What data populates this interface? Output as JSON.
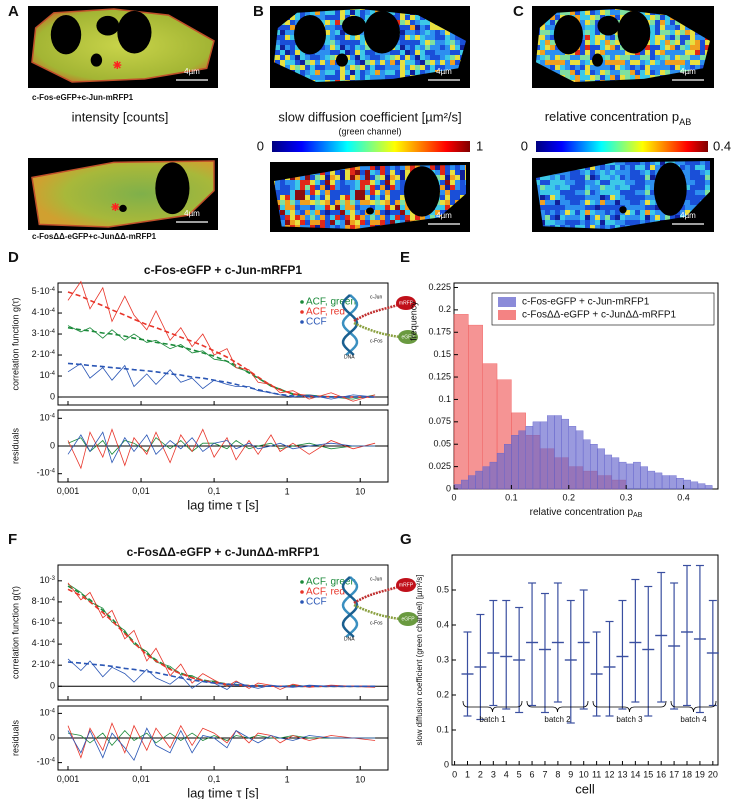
{
  "panels": {
    "labels": [
      "A",
      "B",
      "C",
      "D",
      "E",
      "F",
      "G"
    ],
    "A": {
      "caption_top": "c-Fos-eGFP+c-Jun-mRFP1",
      "caption_bottom": "c-FosΔΔ-eGFP+c-JunΔΔ-mRFP1",
      "title": "intensity [counts]"
    },
    "B": {
      "title": "slow diffusion coefficient [µm²/s]",
      "subtitle": "(green channel)",
      "colorbar": [
        0,
        1
      ]
    },
    "C": {
      "title": "relative concentration p",
      "title_sub": "AB",
      "colorbar": [
        0,
        0.4
      ]
    },
    "scale_bar": "4µm"
  },
  "chart_data": [
    {
      "type": "correlation",
      "title": "c-Fos-eGFP + c-Jun-mRFP1",
      "ylabel": "correlation function g(τ)",
      "residual_label": "residuals",
      "xlabel": "lag time τ [s]",
      "xscale": "log",
      "x": [
        0.001,
        0.0015,
        0.002,
        0.003,
        0.004,
        0.006,
        0.008,
        0.012,
        0.016,
        0.025,
        0.035,
        0.05,
        0.07,
        0.1,
        0.15,
        0.2,
        0.3,
        0.4,
        0.6,
        0.8,
        1.2,
        2,
        4,
        8,
        16
      ],
      "xlim": [
        0.00073,
        24
      ],
      "xticks": [
        {
          "value": 0.001,
          "label": "0,001"
        },
        {
          "value": 0.01,
          "label": "0,01"
        },
        {
          "value": 0.1,
          "label": "0,1"
        },
        1,
        10
      ],
      "ylim": [
        -3.8e-05,
        0.000543
      ],
      "yticks": [
        0,
        {
          "value": 0.0001,
          "label": "10",
          "exp": "-4"
        },
        {
          "value": 0.0002,
          "label": "2·10",
          "exp": "-4"
        },
        {
          "value": 0.0003,
          "label": "3·10",
          "exp": "-4"
        },
        {
          "value": 0.0004,
          "label": "4·10",
          "exp": "-4"
        },
        {
          "value": 0.0005,
          "label": "5·10",
          "exp": "-4"
        }
      ],
      "residual_ylim": [
        -0.00013,
        0.00013
      ],
      "residual_yticks": [
        {
          "value": -0.0001,
          "label": "-10",
          "exp": "-4"
        },
        0,
        {
          "value": 0.0001,
          "label": "10",
          "exp": "-4"
        }
      ],
      "series": [
        {
          "name": "ACF, green",
          "color": "#1b8a3a",
          "values": [
            0.00034,
            0.00031,
            0.00033,
            0.00028,
            0.00032,
            0.00027,
            0.0003,
            0.00026,
            0.00027,
            0.00023,
            0.00025,
            0.00021,
            0.00022,
            0.00018,
            0.00017,
            0.00014,
            0.00012,
            9e-05,
            5e-05,
            4e-05,
            1e-05,
            1e-05,
            0,
            -1e-05,
            1e-05
          ],
          "fit": [
            0.00033,
            0.00032,
            0.000315,
            0.000305,
            0.0003,
            0.00029,
            0.00028,
            0.00027,
            0.00026,
            0.00025,
            0.00024,
            0.000225,
            0.00021,
            0.000195,
            0.00017,
            0.00015,
            0.000115,
            9e-05,
            5.5e-05,
            3.5e-05,
            1.5e-05,
            5e-06,
            1e-06,
            0,
            0
          ],
          "residuals": [
            1e-05,
            3e-05,
            -2e-05,
            2e-05,
            -3e-05,
            2e-05,
            1e-05,
            -2e-05,
            3e-05,
            -1e-05,
            2e-05,
            -2e-05,
            1e-05,
            1e-05,
            -1e-05,
            2e-05,
            -1e-05,
            0,
            1e-05,
            -1e-05,
            0,
            1e-05,
            -1e-05,
            0,
            0
          ]
        },
        {
          "name": "ACF, red",
          "color": "#e8352a",
          "values": [
            0.00046,
            0.00055,
            0.00042,
            0.00052,
            0.00036,
            0.00048,
            0.00039,
            0.00032,
            0.00041,
            0.00027,
            0.00033,
            0.00024,
            0.0003,
            0.0002,
            0.00023,
            0.00014,
            0.00013,
            7e-05,
            6e-05,
            2e-05,
            3e-05,
            -1e-05,
            2e-05,
            -2e-05,
            1e-05
          ],
          "fit": [
            0.0005,
            0.00048,
            0.00046,
            0.000435,
            0.000415,
            0.00039,
            0.00037,
            0.000345,
            0.00033,
            0.000305,
            0.000285,
            0.000265,
            0.000245,
            0.00022,
            0.00019,
            0.000165,
            0.000125,
            9.5e-05,
            5.5e-05,
            3.5e-05,
            1.5e-05,
            5e-06,
            1e-06,
            0,
            0
          ],
          "residuals": [
            2e-05,
            -8e-05,
            5e-05,
            -4e-05,
            6e-05,
            -7e-05,
            3e-05,
            -3e-05,
            5e-05,
            -6e-05,
            4e-05,
            -2e-05,
            6e-05,
            -4e-05,
            3e-05,
            -5e-05,
            2e-05,
            -3e-05,
            4e-05,
            -2e-05,
            1e-05,
            -3e-05,
            2e-05,
            -1e-05,
            1e-05
          ]
        },
        {
          "name": "CCF",
          "color": "#2a56b5",
          "values": [
            0.00012,
            0.00016,
            9e-05,
            0.00014,
            8e-05,
            0.00015,
            5e-05,
            0.00011,
            6e-05,
            0.00013,
            7e-05,
            9e-05,
            4e-05,
            8e-05,
            6e-05,
            5e-05,
            5e-05,
            3e-05,
            2e-05,
            1e-05,
            0,
            1e-05,
            -1e-05,
            1e-05,
            0
          ],
          "fit": [
            0.00016,
            0.000155,
            0.00015,
            0.000145,
            0.00014,
            0.000135,
            0.00013,
            0.000125,
            0.00012,
            0.00011,
            0.000105,
            9.5e-05,
            9e-05,
            8e-05,
            7e-05,
            6e-05,
            4.5e-05,
            3.5e-05,
            2e-05,
            1.2e-05,
            5e-06,
            2e-06,
            0,
            0,
            0
          ],
          "residuals": [
            -3e-05,
            4e-05,
            -2e-05,
            5e-05,
            -6e-05,
            3e-05,
            -2e-05,
            4e-05,
            -3e-05,
            2e-05,
            -1e-05,
            3e-05,
            -2e-05,
            1e-05,
            2e-05,
            -1e-05,
            1e-05,
            -1e-05,
            0,
            1e-05,
            -1e-05,
            0,
            1e-05,
            0,
            0
          ]
        }
      ],
      "inset_labels": [
        "c-Jun",
        "c-Fos",
        "DNA",
        "mRFP",
        "eGFP"
      ]
    },
    {
      "type": "correlation",
      "title": "c-FosΔΔ-eGFP + c-JunΔΔ-mRFP1",
      "ylabel": "correlation function g(τ)",
      "residual_label": "residuals",
      "xlabel": "lag time τ [s]",
      "xscale": "log",
      "x": [
        0.001,
        0.0015,
        0.002,
        0.003,
        0.004,
        0.006,
        0.008,
        0.012,
        0.016,
        0.025,
        0.035,
        0.05,
        0.07,
        0.1,
        0.15,
        0.2,
        0.3,
        0.4,
        0.6,
        0.8,
        1.2,
        2,
        4,
        8,
        16
      ],
      "xlim": [
        0.00073,
        24
      ],
      "xticks": [
        {
          "value": 0.001,
          "label": "0,001"
        },
        {
          "value": 0.01,
          "label": "0,01"
        },
        {
          "value": 0.1,
          "label": "0,1"
        },
        1,
        10
      ],
      "ylim": [
        -0.00013,
        0.00115
      ],
      "yticks": [
        0,
        {
          "value": 0.0002,
          "label": "2·10",
          "exp": "-4"
        },
        {
          "value": 0.0004,
          "label": "4·10",
          "exp": "-4"
        },
        {
          "value": 0.0006,
          "label": "6·10",
          "exp": "-4"
        },
        {
          "value": 0.0008,
          "label": "8·10",
          "exp": "-4"
        },
        {
          "value": 0.001,
          "label": "10",
          "exp": "-3"
        }
      ],
      "residual_ylim": [
        -0.00013,
        0.00013
      ],
      "residual_yticks": [
        {
          "value": -0.0001,
          "label": "-10",
          "exp": "-4"
        },
        0,
        {
          "value": 0.0001,
          "label": "10",
          "exp": "-4"
        }
      ],
      "series": [
        {
          "name": "ACF, green",
          "color": "#1b8a3a",
          "values": [
            0.00097,
            0.00089,
            0.0008,
            0.00074,
            0.00061,
            0.00053,
            0.0004,
            0.00033,
            0.00023,
            0.00019,
            0.00011,
            0.0001,
            5e-05,
            5e-05,
            1e-05,
            2e-05,
            0,
            1e-05,
            0,
            0,
            1e-05,
            0,
            0,
            0,
            0
          ],
          "fit": [
            0.00095,
            0.00088,
            0.00082,
            0.00072,
            0.00064,
            0.00051,
            0.00042,
            0.00031,
            0.00025,
            0.00017,
            0.000125,
            8.5e-05,
            6e-05,
            4e-05,
            2.2e-05,
            1.4e-05,
            7e-06,
            3e-06,
            1e-06,
            0,
            0,
            0,
            0,
            0,
            0
          ],
          "residuals": [
            2e-05,
            1e-05,
            -2e-05,
            2e-05,
            -3e-05,
            3e-05,
            -1e-05,
            2e-05,
            -2e-05,
            2e-05,
            -1e-05,
            2e-05,
            -1e-05,
            1e-05,
            -1e-05,
            1e-05,
            0,
            1e-05,
            0,
            0,
            1e-05,
            0,
            0,
            0,
            0
          ]
        },
        {
          "name": "ACF, red",
          "color": "#e8352a",
          "values": [
            0.00098,
            0.00082,
            0.00089,
            0.00065,
            0.00072,
            0.00045,
            0.00053,
            0.00024,
            0.00036,
            0.0001,
            0.00021,
            3e-05,
            0.00012,
            6e-05,
            0,
            5e-05,
            -2e-05,
            3e-05,
            1e-05,
            -3e-05,
            2e-05,
            -1e-05,
            1e-05,
            0,
            -1e-05
          ],
          "fit": [
            0.00092,
            0.00086,
            0.0008,
            0.0007,
            0.00062,
            0.0005,
            0.00041,
            0.0003,
            0.00024,
            0.00016,
            0.00012,
            8e-05,
            5.5e-05,
            3.5e-05,
            2e-05,
            1.2e-05,
            6e-06,
            3e-06,
            1e-06,
            0,
            0,
            0,
            0,
            0,
            0
          ],
          "residuals": [
            5e-05,
            -8e-05,
            4e-05,
            -5e-05,
            6e-05,
            -6e-05,
            5e-05,
            -5e-05,
            4e-05,
            -4e-05,
            5e-05,
            -3e-05,
            4e-05,
            2e-05,
            -2e-05,
            3e-05,
            -2e-05,
            2e-05,
            1e-05,
            -2e-05,
            1e-05,
            -1e-05,
            1e-05,
            0,
            -1e-05
          ]
        },
        {
          "name": "CCF",
          "color": "#2a56b5",
          "values": [
            0.00026,
            0.00015,
            0.00024,
            9e-05,
            0.00018,
            0.00012,
            4e-05,
            0.00016,
            8e-05,
            2e-05,
            0.0001,
            -2e-05,
            5e-05,
            3e-05,
            -3e-05,
            4e-05,
            0,
            -2e-05,
            1e-05,
            0,
            -1e-05,
            1e-05,
            0,
            0,
            0
          ],
          "fit": [
            0.00023,
            0.00022,
            0.00021,
            0.0002,
            0.00019,
            0.00017,
            0.00016,
            0.00014,
            0.00013,
            0.0001,
            8e-05,
            6e-05,
            4.5e-05,
            3e-05,
            2e-05,
            1.2e-05,
            6e-06,
            3e-06,
            1e-06,
            0,
            0,
            0,
            0,
            0,
            0
          ],
          "residuals": [
            3e-05,
            -6e-05,
            3e-05,
            -8e-05,
            2e-05,
            -4e-05,
            -9e-05,
            4e-05,
            -3e-05,
            -6e-05,
            3e-05,
            -6e-05,
            1e-05,
            0,
            -4e-05,
            3e-05,
            0,
            -2e-05,
            1e-05,
            0,
            -1e-05,
            1e-05,
            0,
            0,
            0
          ]
        }
      ],
      "inset_labels": [
        "c-Jun",
        "c-Fos",
        "DNA",
        "mRFP",
        "eGFP"
      ]
    },
    {
      "type": "histogram",
      "ylabel": "frequency",
      "xlabel": "relative concentration p",
      "xlabel_sub": "AB",
      "xlim": [
        0,
        0.46
      ],
      "xticks": [
        0,
        0.1,
        0.2,
        0.3,
        0.4
      ],
      "ylim": [
        0,
        0.23
      ],
      "yticks": [
        0,
        0.025,
        0.05,
        0.075,
        0.1,
        0.125,
        0.15,
        0.175,
        0.2,
        0.225
      ],
      "series": [
        {
          "name": "c-Fos-eGFP + c-Jun-mRFP1",
          "color": "#6464cc",
          "bins": [
            0,
            0.0125,
            0.025,
            0.0375,
            0.05,
            0.0625,
            0.075,
            0.0875,
            0.1,
            0.1125,
            0.125,
            0.1375,
            0.15,
            0.1625,
            0.175,
            0.1875,
            0.2,
            0.2125,
            0.225,
            0.2375,
            0.25,
            0.2625,
            0.275,
            0.2875,
            0.3,
            0.3125,
            0.325,
            0.3375,
            0.35,
            0.3625,
            0.375,
            0.3875,
            0.4,
            0.4125,
            0.425,
            0.4375,
            0.45
          ],
          "values": [
            0.005,
            0.01,
            0.015,
            0.02,
            0.025,
            0.03,
            0.04,
            0.05,
            0.06,
            0.065,
            0.07,
            0.075,
            0.075,
            0.082,
            0.082,
            0.078,
            0.07,
            0.065,
            0.055,
            0.05,
            0.045,
            0.038,
            0.035,
            0.03,
            0.028,
            0.03,
            0.025,
            0.02,
            0.018,
            0.015,
            0.015,
            0.012,
            0.01,
            0.008,
            0.006,
            0.004
          ]
        },
        {
          "name": "c-FosΔΔ-eGFP + c-JunΔΔ-mRFP1",
          "color": "#f05a5a",
          "bins": [
            0,
            0.025,
            0.05,
            0.075,
            0.1,
            0.125,
            0.15,
            0.175,
            0.2,
            0.225,
            0.25,
            0.275,
            0.3
          ],
          "values": [
            0.195,
            0.183,
            0.14,
            0.122,
            0.085,
            0.06,
            0.045,
            0.035,
            0.025,
            0.02,
            0.015,
            0.01
          ]
        }
      ]
    },
    {
      "type": "errorbar",
      "ylabel": "slow diffusion coefficient (green channel) [µm²/s]",
      "xlabel": "cell",
      "x": [
        1,
        2,
        3,
        4,
        5,
        6,
        7,
        8,
        9,
        10,
        11,
        12,
        13,
        14,
        15,
        16,
        17,
        18,
        19,
        20
      ],
      "xlim": [
        -0.2,
        20.4
      ],
      "xticks": [
        0,
        1,
        2,
        3,
        4,
        5,
        6,
        7,
        8,
        9,
        10,
        11,
        12,
        13,
        14,
        15,
        16,
        17,
        18,
        19,
        20
      ],
      "ylim": [
        0,
        0.6
      ],
      "yticks": [
        0,
        0.1,
        0.2,
        0.3,
        0.4,
        0.5
      ],
      "color": "#3a4fa0",
      "values": [
        0.26,
        0.28,
        0.32,
        0.31,
        0.3,
        0.35,
        0.33,
        0.35,
        0.3,
        0.35,
        0.26,
        0.28,
        0.31,
        0.35,
        0.33,
        0.37,
        0.34,
        0.38,
        0.36,
        0.32
      ],
      "lower": [
        0.14,
        0.13,
        0.17,
        0.16,
        0.15,
        0.17,
        0.15,
        0.18,
        0.12,
        0.16,
        0.14,
        0.14,
        0.16,
        0.18,
        0.14,
        0.18,
        0.16,
        0.17,
        0.15,
        0.17
      ],
      "upper": [
        0.38,
        0.43,
        0.47,
        0.47,
        0.45,
        0.52,
        0.49,
        0.52,
        0.47,
        0.5,
        0.38,
        0.41,
        0.47,
        0.53,
        0.51,
        0.55,
        0.52,
        0.57,
        0.57,
        0.47
      ],
      "batch_labels": [
        "batch 1",
        "batch 2",
        "batch 3",
        "batch 4"
      ]
    }
  ]
}
